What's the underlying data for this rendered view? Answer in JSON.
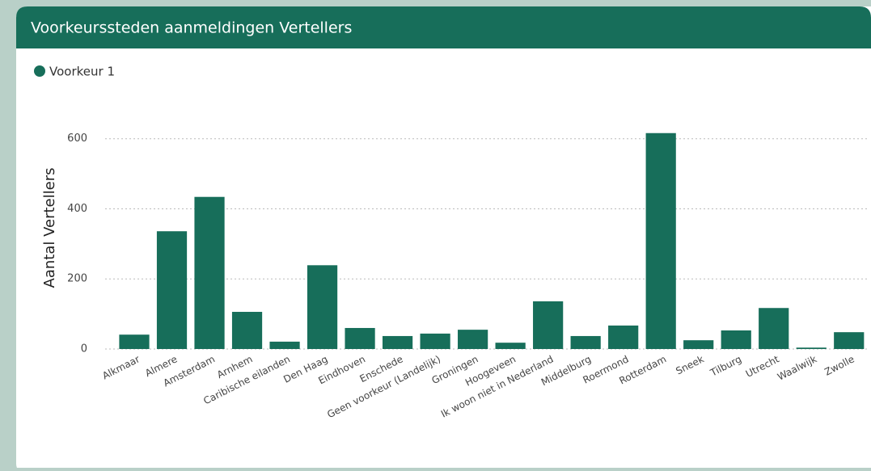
{
  "chart_data": {
    "type": "bar",
    "title": "Voorkeurssteden aanmeldingen Vertellers",
    "y_label": "Aantal Vertellers",
    "legend": "top-left",
    "series": [
      {
        "name": "Voorkeur 1",
        "color": "#176e5a",
        "values": [
          41,
          336,
          434,
          106,
          21,
          239,
          60,
          37,
          44,
          55,
          18,
          136,
          37,
          67,
          616,
          25,
          53,
          117,
          4,
          48
        ]
      }
    ],
    "categories": [
      "Alkmaar",
      "Almere",
      "Amsterdam",
      "Arnhem",
      "Caribische eilanden",
      "Den Haag",
      "Eindhoven",
      "Enschede",
      "Geen voorkeur (Landelijk)",
      "Groningen",
      "Hoogeveen",
      "Ik woon niet in Nederland",
      "Middelburg",
      "Roermond",
      "Rotterdam",
      "Sneek",
      "Tilburg",
      "Utrecht",
      "Waalwijk",
      "Zwolle"
    ],
    "ylim": [
      0,
      650
    ],
    "yticks": [
      0,
      200,
      400,
      600
    ],
    "grid": true
  }
}
